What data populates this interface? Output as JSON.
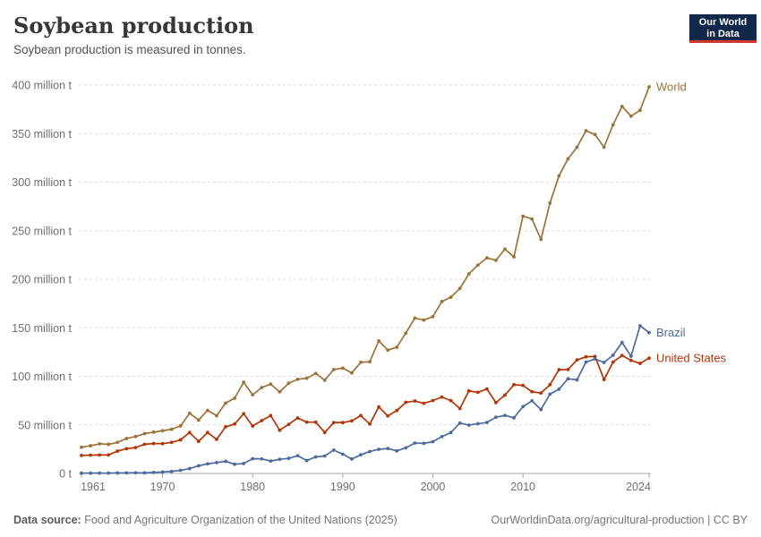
{
  "header": {
    "title": "Soybean production",
    "subtitle": "Soybean production is measured in tonnes."
  },
  "logo": {
    "line1": "Our World",
    "line2": "in Data"
  },
  "footer": {
    "source_label": "Data source:",
    "source_text": " Food and Agriculture Organization of the United Nations (2025)",
    "right_link": "OurWorldinData.org/agricultural-production",
    "right_suffix": " | CC BY"
  },
  "colors": {
    "world": "#9B7339",
    "brazil": "#4C6A9C",
    "united_states": "#B13507",
    "grid": "#dcdcdc",
    "axis": "#a8a8a8",
    "logo_bg": "#12284B",
    "logo_accent": "#CF3A31"
  },
  "chart_data": {
    "type": "line",
    "title": "Soybean production",
    "unit": "tonnes",
    "value_unit_label": "million t",
    "grid": "horizontal-dashed",
    "legend_position": "line-end-labels",
    "ylim": [
      0,
      400
    ],
    "y_ticks": [
      {
        "value": 0,
        "label": "0 t"
      },
      {
        "value": 50,
        "label": "50 million t"
      },
      {
        "value": 100,
        "label": "100 million t"
      },
      {
        "value": 150,
        "label": "150 million t"
      },
      {
        "value": 200,
        "label": "200 million t"
      },
      {
        "value": 250,
        "label": "250 million t"
      },
      {
        "value": 300,
        "label": "300 million t"
      },
      {
        "value": 350,
        "label": "350 million t"
      },
      {
        "value": 400,
        "label": "400 million t"
      }
    ],
    "x_ticks": [
      1961,
      1970,
      1980,
      1990,
      2000,
      2010,
      2024
    ],
    "years": [
      1961,
      1962,
      1963,
      1964,
      1965,
      1966,
      1967,
      1968,
      1969,
      1970,
      1971,
      1972,
      1973,
      1974,
      1975,
      1976,
      1977,
      1978,
      1979,
      1980,
      1981,
      1982,
      1983,
      1984,
      1985,
      1986,
      1987,
      1988,
      1989,
      1990,
      1991,
      1992,
      1993,
      1994,
      1995,
      1996,
      1997,
      1998,
      1999,
      2000,
      2001,
      2002,
      2003,
      2004,
      2005,
      2006,
      2007,
      2008,
      2009,
      2010,
      2011,
      2012,
      2013,
      2014,
      2015,
      2016,
      2017,
      2018,
      2019,
      2020,
      2021,
      2022,
      2023,
      2024
    ],
    "series": [
      {
        "name": "World",
        "color": "#9B7339",
        "values_million_t": [
          27,
          28.5,
          30.5,
          30,
          32,
          36,
          38,
          41,
          42.5,
          44,
          45.5,
          49,
          62,
          55,
          65,
          59.5,
          72.5,
          77.5,
          94,
          81,
          88.5,
          92,
          84,
          93,
          97,
          98,
          103,
          96,
          107,
          108.5,
          103.5,
          114.5,
          115,
          136.5,
          127,
          130,
          144.5,
          160,
          158,
          161.5,
          177,
          181.5,
          190.5,
          205.5,
          214.5,
          222,
          219.5,
          231,
          223,
          265,
          262,
          241,
          278.5,
          306.5,
          324,
          336,
          353,
          349,
          336,
          359,
          378,
          368,
          374,
          398
        ]
      },
      {
        "name": "United States",
        "color": "#B13507",
        "values_million_t": [
          18.5,
          18.9,
          19,
          19.1,
          23,
          25.5,
          26.6,
          30.1,
          30.8,
          30.7,
          32,
          34.6,
          42.1,
          33.1,
          42.1,
          35.1,
          48,
          50.9,
          61.5,
          48.9,
          54.4,
          59.6,
          44.5,
          50.6,
          57.1,
          52.9,
          52.8,
          42.2,
          52.4,
          52.4,
          54.1,
          59.6,
          50.9,
          68.5,
          59.2,
          64.8,
          73.2,
          74.6,
          72.2,
          75.1,
          78.7,
          75,
          66.8,
          85,
          83.5,
          87,
          72.9,
          80.7,
          91.4,
          90.7,
          84.2,
          82.8,
          91.4,
          106.9,
          107,
          116.9,
          120.1,
          120.5,
          96.7,
          114.7,
          121.5,
          116.4,
          113.3,
          118.8
        ]
      },
      {
        "name": "Brazil",
        "color": "#4C6A9C",
        "values_million_t": [
          0.27,
          0.35,
          0.32,
          0.3,
          0.52,
          0.6,
          0.72,
          0.65,
          1.06,
          1.5,
          2.1,
          3.2,
          5,
          7.9,
          9.9,
          11.2,
          12.5,
          9.5,
          10.2,
          15.2,
          15,
          12.8,
          14.6,
          15.5,
          18.3,
          13.3,
          17,
          18,
          24.1,
          19.9,
          14.9,
          19.2,
          22.6,
          24.9,
          25.7,
          23.2,
          26.4,
          31.3,
          31,
          32.7,
          37.9,
          42.1,
          51.9,
          49.8,
          51.2,
          52.5,
          57.9,
          59.8,
          57.3,
          68.8,
          74.8,
          65.8,
          81.7,
          86.8,
          97.5,
          96.4,
          114.7,
          117.9,
          114.3,
          121.8,
          134.9,
          120.7,
          152.1,
          145
        ]
      }
    ]
  }
}
